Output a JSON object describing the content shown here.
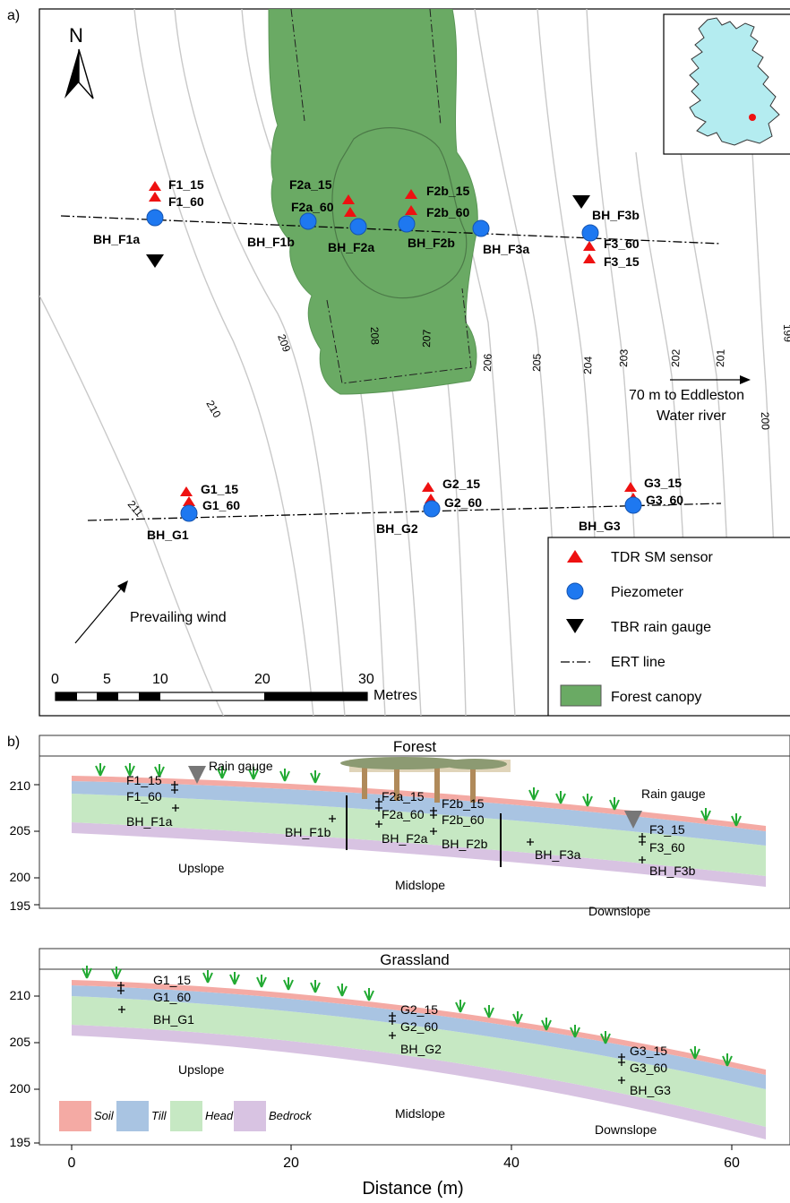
{
  "panel_a": {
    "panel_label": "a)",
    "north_label": "N",
    "contours": [
      "211",
      "210",
      "209",
      "208",
      "207",
      "206",
      "205",
      "204",
      "203",
      "202",
      "201",
      "200",
      "199"
    ],
    "river_note_line1": "70 m to Eddleston",
    "river_note_line2": "Water river",
    "wind_label": "Prevailing wind",
    "scale_labels": [
      "0",
      "5",
      "10",
      "20",
      "30"
    ],
    "scale_unit": "Metres",
    "sensors": [
      "F1_15",
      "F1_60",
      "F2a_15",
      "F2a_60",
      "F2b_15",
      "F2b_60",
      "F3_60",
      "F3_15",
      "G1_15",
      "G1_60",
      "G2_15",
      "G2_60",
      "G3_15",
      "G3_60"
    ],
    "piezometers": [
      "BH_F1a",
      "BH_F1b",
      "BH_F2a",
      "BH_F2b",
      "BH_F3a",
      "BH_F3b",
      "BH_G1",
      "BH_G2",
      "BH_G3"
    ],
    "legend": [
      {
        "label": "TDR SM sensor",
        "color": "#ee1111"
      },
      {
        "label": "Piezometer",
        "color": "#1e78f0"
      },
      {
        "label": "TBR rain gauge",
        "color": "#000000"
      },
      {
        "label": "ERT line",
        "color": "#000000"
      },
      {
        "label": "Forest canopy",
        "color": "#6aaa64"
      }
    ]
  },
  "panel_b": {
    "panel_label": "b)",
    "forest_title": "Forest",
    "grass_title": "Grassland",
    "xlabel": "Distance (m)",
    "x_ticks": [
      "0",
      "20",
      "40",
      "60"
    ],
    "y_ticks": [
      "210",
      "205",
      "200",
      "195"
    ],
    "forest_labels": {
      "rain_gauge_1": "Rain gauge",
      "rain_gauge_2": "Rain gauge",
      "upslope": "Upslope",
      "midslope": "Midslope",
      "downslope": "Downslope",
      "points": [
        "F1_15",
        "F1_60",
        "BH_F1a",
        "BH_F1b",
        "F2a_15",
        "F2a_60",
        "BH_F2a",
        "F2b_15",
        "F2b_60",
        "BH_F2b",
        "BH_F3a",
        "F3_15",
        "F3_60",
        "BH_F3b"
      ]
    },
    "grass_labels": {
      "upslope": "Upslope",
      "midslope": "Midslope",
      "downslope": "Downslope",
      "points": [
        "G1_15",
        "G1_60",
        "BH_G1",
        "G2_15",
        "G2_60",
        "BH_G2",
        "G3_15",
        "G3_60",
        "BH_G3"
      ]
    },
    "layers": [
      {
        "label": "Soil",
        "color": "#f4aaa4"
      },
      {
        "label": "Till",
        "color": "#a9c4e2"
      },
      {
        "label": "Head",
        "color": "#c6e8c3"
      },
      {
        "label": "Bedrock",
        "color": "#d8c3e2"
      }
    ]
  }
}
